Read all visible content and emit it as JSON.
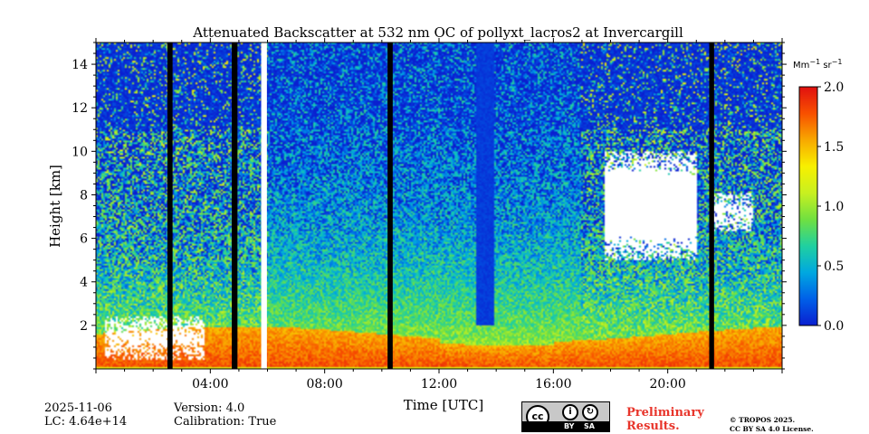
{
  "chart_data": {
    "type": "heatmap",
    "title": "Attenuated Backscatter at 532 nm OC of pollyxt_lacros2 at Invercargill",
    "xlabel": "Time [UTC]",
    "ylabel": "Height [km]",
    "xlim_hours": [
      0,
      24
    ],
    "ylim_km": [
      0,
      15
    ],
    "x_ticks": [
      {
        "value": 4,
        "label": "04:00"
      },
      {
        "value": 8,
        "label": "08:00"
      },
      {
        "value": 12,
        "label": "12:00"
      },
      {
        "value": 16,
        "label": "16:00"
      },
      {
        "value": 20,
        "label": "20:00"
      }
    ],
    "y_ticks": [
      {
        "value": 2,
        "label": "2"
      },
      {
        "value": 4,
        "label": "4"
      },
      {
        "value": 6,
        "label": "6"
      },
      {
        "value": 8,
        "label": "8"
      },
      {
        "value": 10,
        "label": "10"
      },
      {
        "value": 12,
        "label": "12"
      },
      {
        "value": 14,
        "label": "14"
      }
    ],
    "colorbar": {
      "unit_main": "Mm",
      "unit_exp1": "−1",
      "unit_mid": " sr",
      "unit_exp2": "−1",
      "range": [
        0,
        2.0
      ],
      "ticks": [
        {
          "value": 0.0,
          "label": "0.0"
        },
        {
          "value": 0.5,
          "label": "0.5"
        },
        {
          "value": 1.0,
          "label": "1.0"
        },
        {
          "value": 1.5,
          "label": "1.5"
        },
        {
          "value": 2.0,
          "label": "2.0"
        }
      ],
      "colormap": [
        "#0a1fd0",
        "#0060e8",
        "#00a8e0",
        "#20d0a0",
        "#70e040",
        "#c8f020",
        "#f8f000",
        "#f8a800",
        "#f85000",
        "#e01010"
      ]
    },
    "data_gaps_hours": [
      {
        "start": 2.5,
        "end": 2.68,
        "kind": "no-data"
      },
      {
        "start": 4.75,
        "end": 4.95,
        "kind": "no-data"
      },
      {
        "start": 5.78,
        "end": 5.98,
        "kind": "blank"
      },
      {
        "start": 10.2,
        "end": 10.38,
        "kind": "no-data"
      },
      {
        "start": 21.45,
        "end": 21.62,
        "kind": "no-data"
      }
    ],
    "features": [
      {
        "name": "boundary-layer",
        "from_h": 0,
        "to_h": 24,
        "top_km": 1.6,
        "value": 1.8
      },
      {
        "name": "low-signal-column",
        "from_h": 13.3,
        "to_h": 13.9,
        "bottom_km": 2.0,
        "top_km": 15,
        "value": 0.05
      },
      {
        "name": "cirrus-cloud",
        "from_h": 17.8,
        "to_h": 21.0,
        "bottom_km": 5.0,
        "top_km": 10.0,
        "value": 2.5
      },
      {
        "name": "cirrus-cloud",
        "from_h": 21.6,
        "to_h": 23.0,
        "bottom_km": 6.3,
        "top_km": 8.1,
        "value": 2.5
      },
      {
        "name": "low-cloud",
        "from_h": 0.3,
        "to_h": 3.8,
        "bottom_km": 0.4,
        "top_km": 2.4,
        "value": 2.5
      }
    ]
  },
  "footer": {
    "date": "2025-11-06",
    "lc": "LC: 4.64e+14",
    "version": "Version: 4.0",
    "calibration": "Calibration: True",
    "preliminary_line1": "Preliminary",
    "preliminary_line2": "Results.",
    "copyright_line1": "© TROPOS 2025.",
    "copyright_line2": "CC BY SA 4.0 License.",
    "cc_badge_cc": "cc",
    "cc_badge_by": "BY",
    "cc_badge_sa": "SA"
  }
}
